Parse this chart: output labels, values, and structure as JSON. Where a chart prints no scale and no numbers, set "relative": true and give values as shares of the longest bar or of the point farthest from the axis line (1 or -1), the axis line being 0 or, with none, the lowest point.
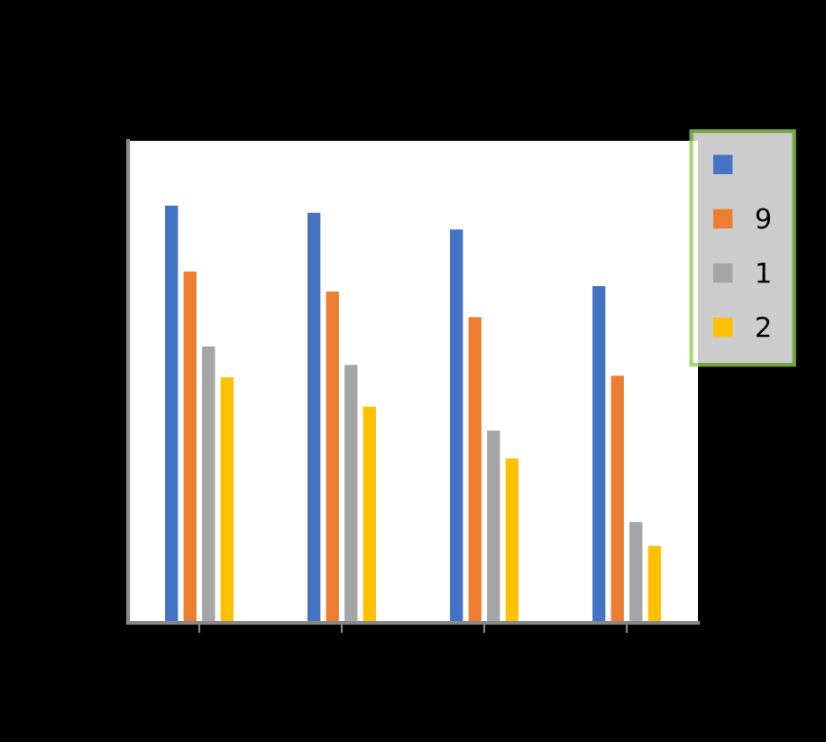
{
  "chart_data": {
    "type": "bar",
    "relative": true,
    "categories": [
      null,
      null,
      null,
      null
    ],
    "series": [
      {
        "color": "#4472c4",
        "values": [
          1.0,
          0.983,
          0.943,
          0.808
        ]
      },
      {
        "name": "9",
        "color": "#ed7d31",
        "values": [
          0.843,
          0.795,
          0.734,
          0.594
        ]
      },
      {
        "name": "1",
        "color": "#a5a5a5",
        "values": [
          0.664,
          0.62,
          0.463,
          0.245
        ]
      },
      {
        "name": "2",
        "color": "#ffc000",
        "values": [
          0.59,
          0.52,
          0.397,
          0.188
        ]
      }
    ],
    "legend": "top right",
    "grid": false
  }
}
